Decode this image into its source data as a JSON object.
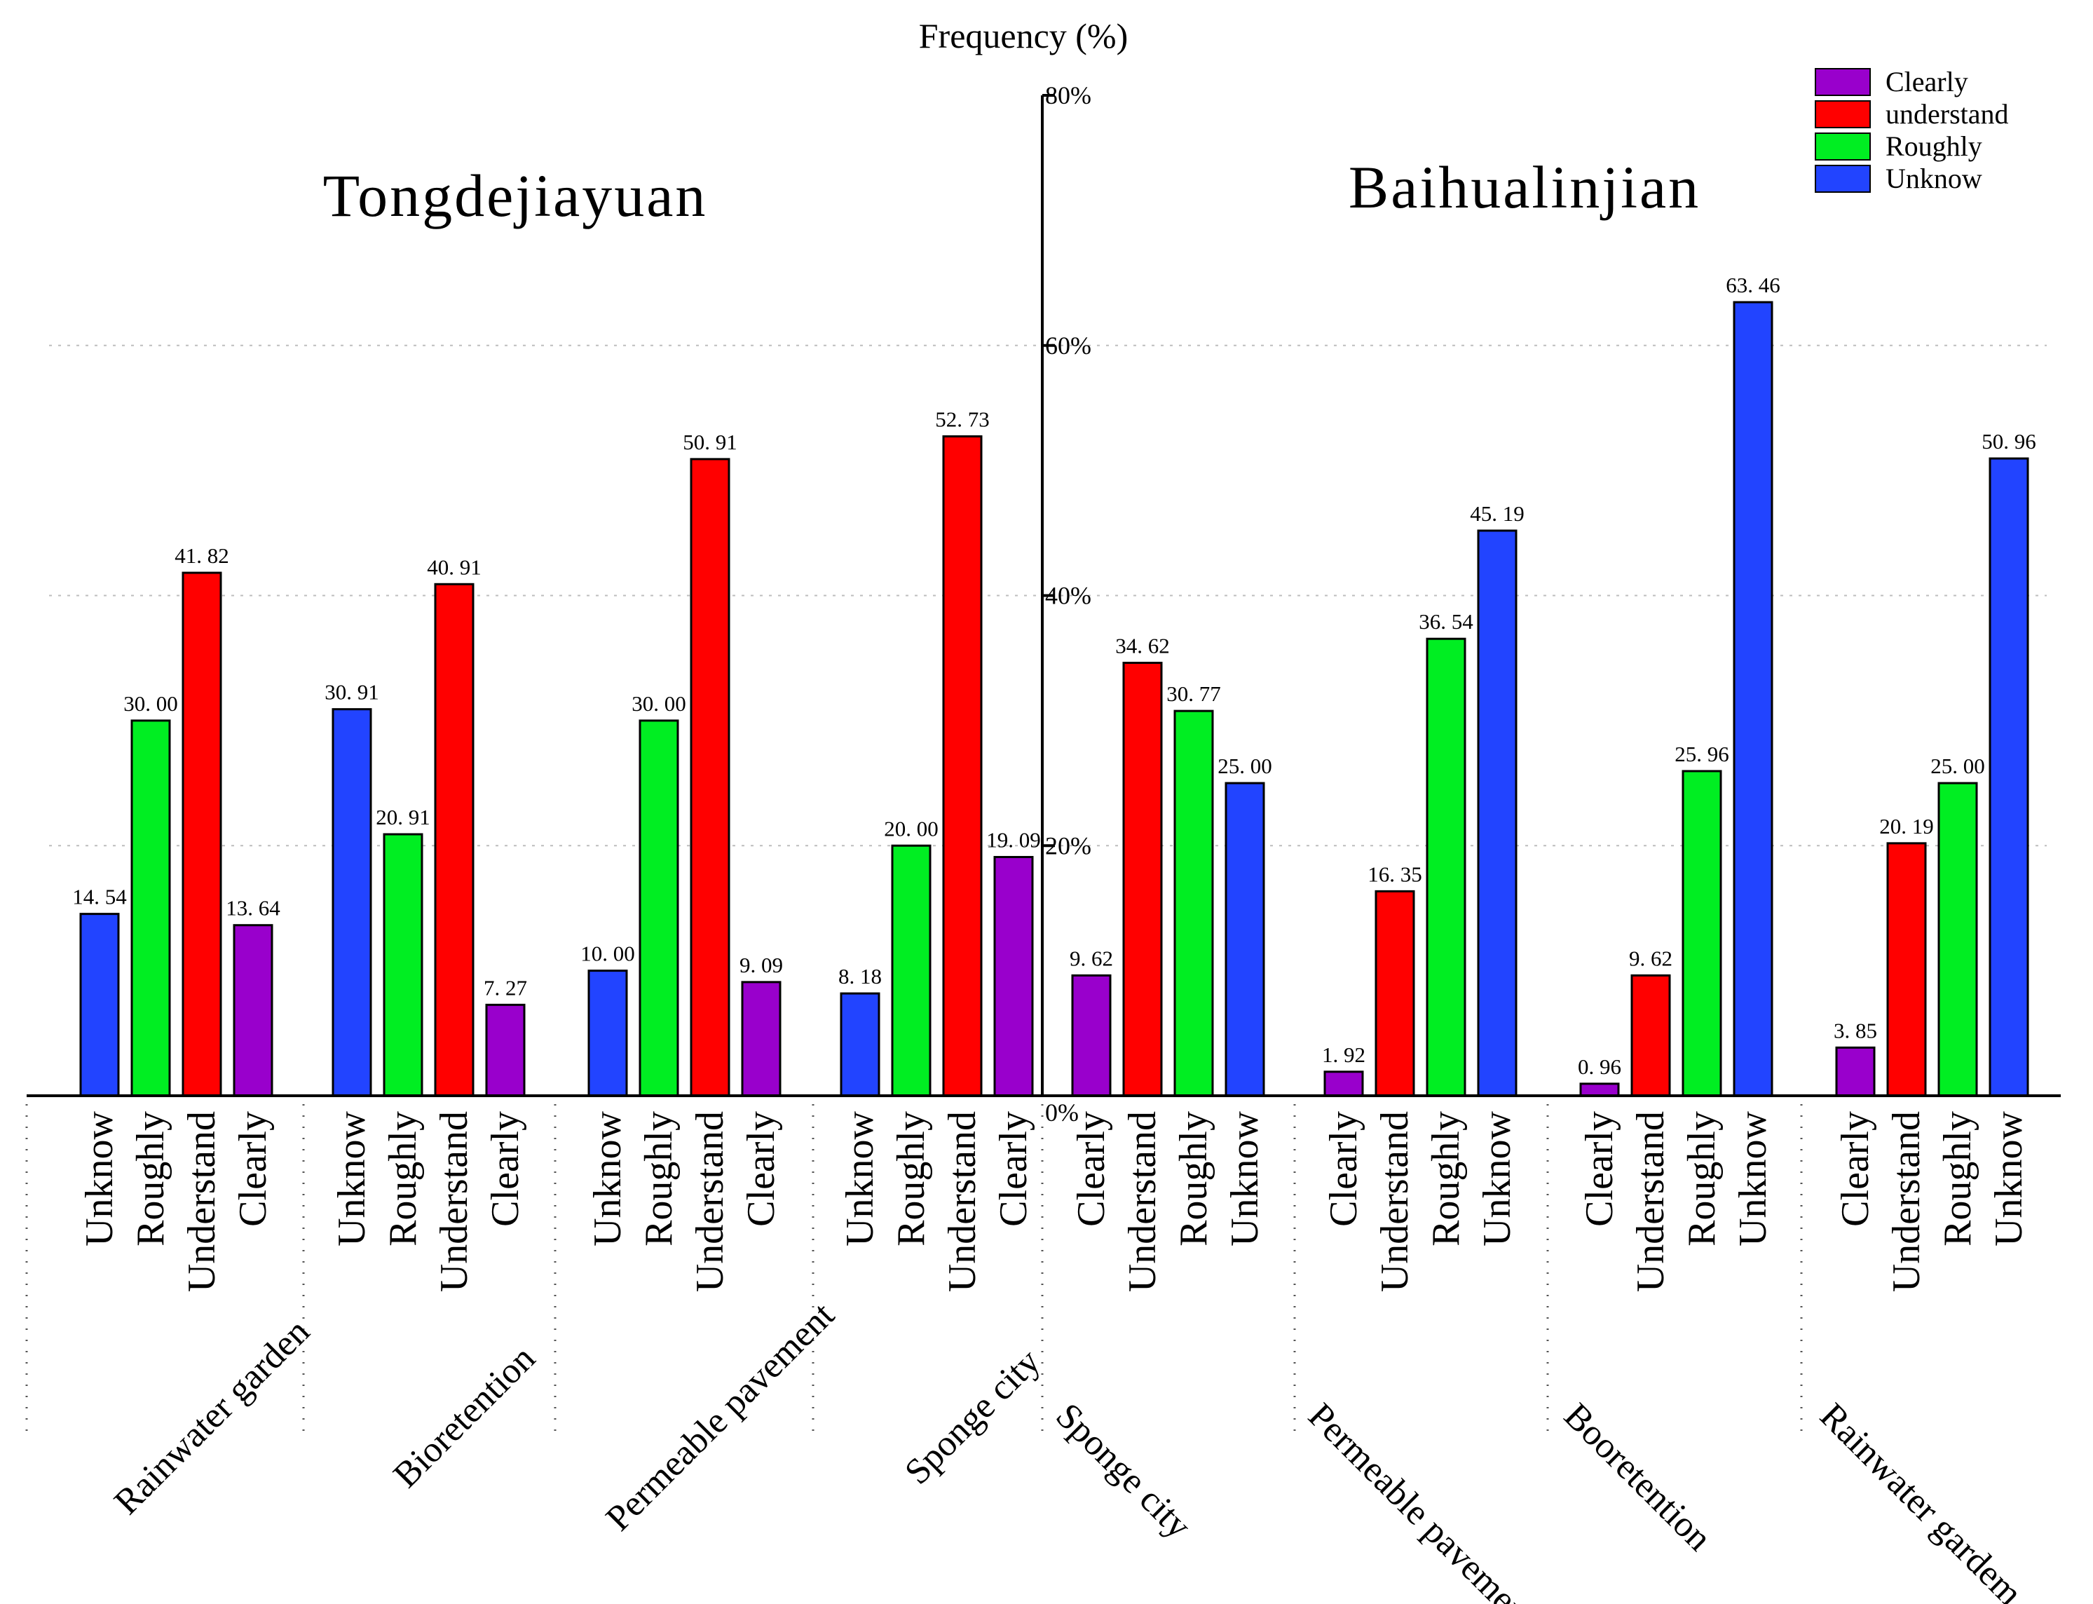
{
  "chart_data": {
    "type": "bar",
    "axis_title": "Frequency (%)",
    "ylim": [
      0,
      80
    ],
    "y_ticks": [
      "0%",
      "20%",
      "40%",
      "60%",
      "80%"
    ],
    "y_tick_values": [
      0,
      20,
      40,
      60,
      80
    ],
    "grid": true,
    "legend_position": "top-right",
    "legend": [
      {
        "label": "Clearly",
        "color": "#9900cc"
      },
      {
        "label": "understand",
        "color": "#ff0000"
      },
      {
        "label": "Roughly",
        "color": "#00ee22"
      },
      {
        "label": "Unknow",
        "color": "#2244ff"
      }
    ],
    "panels": [
      {
        "title": "Tongdejiayuan",
        "side": "left",
        "groups": [
          {
            "name": "Rainwater garden",
            "bars": [
              {
                "label": "Unknow",
                "value": 14.54,
                "value_text": "14. 54",
                "color": "#2244ff"
              },
              {
                "label": "Roughly",
                "value": 30.0,
                "value_text": "30. 00",
                "color": "#00ee22"
              },
              {
                "label": "Understand",
                "value": 41.82,
                "value_text": "41. 82",
                "color": "#ff0000"
              },
              {
                "label": "Clearly",
                "value": 13.64,
                "value_text": "13. 64",
                "color": "#9900cc"
              }
            ]
          },
          {
            "name": "Bioretention",
            "bars": [
              {
                "label": "Unknow",
                "value": 30.91,
                "value_text": "30. 91",
                "color": "#2244ff"
              },
              {
                "label": "Roughly",
                "value": 20.91,
                "value_text": "20. 91",
                "color": "#00ee22"
              },
              {
                "label": "Understand",
                "value": 40.91,
                "value_text": "40. 91",
                "color": "#ff0000"
              },
              {
                "label": "Clearly",
                "value": 7.27,
                "value_text": "7. 27",
                "color": "#9900cc"
              }
            ]
          },
          {
            "name": "Permeable pavement",
            "bars": [
              {
                "label": "Unknow",
                "value": 10.0,
                "value_text": "10. 00",
                "color": "#2244ff"
              },
              {
                "label": "Roughly",
                "value": 30.0,
                "value_text": "30. 00",
                "color": "#00ee22"
              },
              {
                "label": "Understand",
                "value": 50.91,
                "value_text": "50. 91",
                "color": "#ff0000"
              },
              {
                "label": "Clearly",
                "value": 9.09,
                "value_text": "9. 09",
                "color": "#9900cc"
              }
            ]
          },
          {
            "name": "Sponge city",
            "bars": [
              {
                "label": "Unknow",
                "value": 8.18,
                "value_text": "8. 18",
                "color": "#2244ff"
              },
              {
                "label": "Roughly",
                "value": 20.0,
                "value_text": "20. 00",
                "color": "#00ee22"
              },
              {
                "label": "Understand",
                "value": 52.73,
                "value_text": "52. 73",
                "color": "#ff0000"
              },
              {
                "label": "Clearly",
                "value": 19.09,
                "value_text": "19. 09",
                "color": "#9900cc"
              }
            ]
          }
        ]
      },
      {
        "title": "Baihualinjian",
        "side": "right",
        "groups": [
          {
            "name": "Sponge city",
            "bars": [
              {
                "label": "Clearly",
                "value": 9.62,
                "value_text": "9. 62",
                "color": "#9900cc"
              },
              {
                "label": "Understand",
                "value": 34.62,
                "value_text": "34. 62",
                "color": "#ff0000"
              },
              {
                "label": "Roughly",
                "value": 30.77,
                "value_text": "30. 77",
                "color": "#00ee22"
              },
              {
                "label": "Unknow",
                "value": 25.0,
                "value_text": "25. 00",
                "color": "#2244ff"
              }
            ]
          },
          {
            "name": "Permeable pavement",
            "bars": [
              {
                "label": "Clearly",
                "value": 1.92,
                "value_text": "1. 92",
                "color": "#9900cc"
              },
              {
                "label": "Understand",
                "value": 16.35,
                "value_text": "16. 35",
                "color": "#ff0000"
              },
              {
                "label": "Roughly",
                "value": 36.54,
                "value_text": "36. 54",
                "color": "#00ee22"
              },
              {
                "label": "Unknow",
                "value": 45.19,
                "value_text": "45. 19",
                "color": "#2244ff"
              }
            ]
          },
          {
            "name": "Booretention",
            "bars": [
              {
                "label": "Clearly",
                "value": 0.96,
                "value_text": "0. 96",
                "color": "#9900cc"
              },
              {
                "label": "Understand",
                "value": 9.62,
                "value_text": "9. 62",
                "color": "#ff0000"
              },
              {
                "label": "Roughly",
                "value": 25.96,
                "value_text": "25. 96",
                "color": "#00ee22"
              },
              {
                "label": "Unknow",
                "value": 63.46,
                "value_text": "63. 46",
                "color": "#2244ff"
              }
            ]
          },
          {
            "name": "Rainwater gardem",
            "bars": [
              {
                "label": "Clearly",
                "value": 3.85,
                "value_text": "3. 85",
                "color": "#9900cc"
              },
              {
                "label": "Understand",
                "value": 20.19,
                "value_text": "20. 19",
                "color": "#ff0000"
              },
              {
                "label": "Roughly",
                "value": 25.0,
                "value_text": "25. 00",
                "color": "#00ee22"
              },
              {
                "label": "Unknow",
                "value": 50.96,
                "value_text": "50. 96",
                "color": "#2244ff"
              }
            ]
          }
        ]
      }
    ]
  }
}
